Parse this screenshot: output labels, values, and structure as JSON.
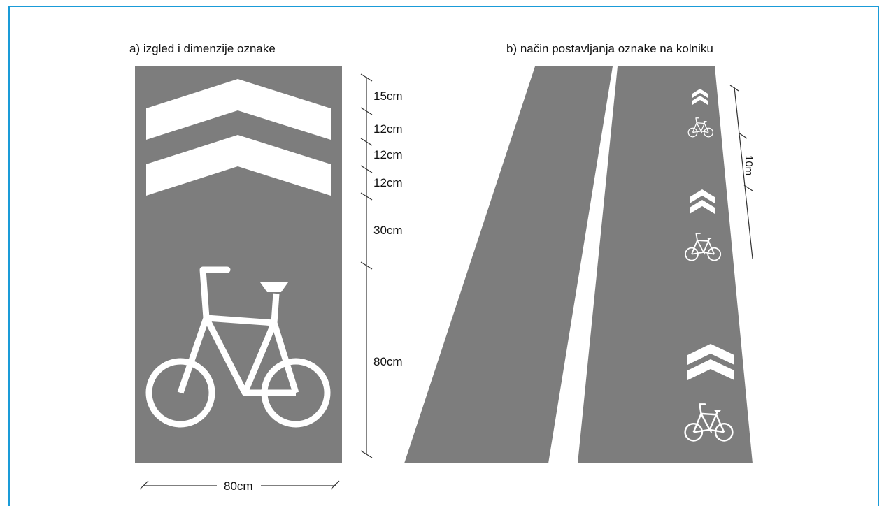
{
  "captions": {
    "a": "a) izgled i dimenzije oznake",
    "b": "b) način postavljanja oznake na kolniku"
  },
  "dimensions": {
    "vertical": [
      "15cm",
      "12cm",
      "12cm",
      "12cm",
      "30cm",
      "80cm"
    ],
    "horizontal": "80cm",
    "road_partial_label": "10m"
  },
  "colors": {
    "frame_border": "#1a9bd8",
    "pavement": "#7d7d7d",
    "marking": "#ffffff"
  },
  "icons": {
    "chevron": "double-chevron-icon",
    "bicycle": "bicycle-icon"
  }
}
